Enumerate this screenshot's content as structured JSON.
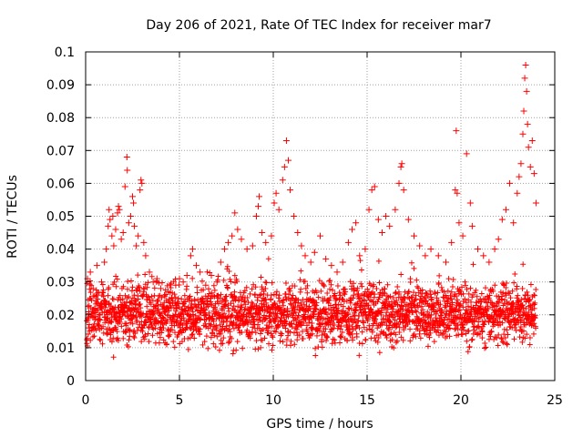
{
  "chart_data": {
    "type": "scatter",
    "title": "Day 206 of 2021, Rate Of TEC Index for receiver mar7",
    "xlabel": "GPS time / hours",
    "ylabel": "ROTI / TECUs",
    "xlim": [
      0,
      25
    ],
    "ylim": [
      0,
      0.1
    ],
    "x_ticks": [
      0,
      5,
      10,
      15,
      20,
      25
    ],
    "x_tick_labels": [
      "0",
      "5",
      "10",
      "15",
      "20",
      "25"
    ],
    "y_ticks": [
      0,
      0.01,
      0.02,
      0.03,
      0.04,
      0.05,
      0.06,
      0.07,
      0.08,
      0.09,
      0.1
    ],
    "y_tick_labels": [
      "0",
      "0.01",
      "0.02",
      "0.03",
      "0.04",
      "0.05",
      "0.06",
      "0.07",
      "0.08",
      "0.09",
      "0.1"
    ],
    "grid": true,
    "marker": "plus",
    "series_color": "#ff0000",
    "series": [
      {
        "name": "ROTI",
        "points": [
          [
            0.1,
            0.031
          ],
          [
            0.25,
            0.033
          ],
          [
            0.4,
            0.028
          ],
          [
            0.6,
            0.035
          ],
          [
            0.85,
            0.03
          ],
          [
            1.0,
            0.036
          ],
          [
            1.1,
            0.04
          ],
          [
            1.2,
            0.047
          ],
          [
            1.25,
            0.052
          ],
          [
            1.3,
            0.049
          ],
          [
            1.4,
            0.044
          ],
          [
            1.45,
            0.05
          ],
          [
            1.5,
            0.041
          ],
          [
            1.6,
            0.046
          ],
          [
            1.7,
            0.051
          ],
          [
            1.75,
            0.053
          ],
          [
            1.8,
            0.052
          ],
          [
            1.9,
            0.043
          ],
          [
            2.0,
            0.045
          ],
          [
            2.1,
            0.059
          ],
          [
            2.2,
            0.068
          ],
          [
            2.22,
            0.064
          ],
          [
            2.3,
            0.048
          ],
          [
            2.4,
            0.05
          ],
          [
            2.5,
            0.056
          ],
          [
            2.55,
            0.054
          ],
          [
            2.6,
            0.047
          ],
          [
            2.7,
            0.041
          ],
          [
            2.8,
            0.044
          ],
          [
            2.9,
            0.058
          ],
          [
            2.95,
            0.061
          ],
          [
            3.0,
            0.06
          ],
          [
            3.1,
            0.042
          ],
          [
            3.2,
            0.038
          ],
          [
            3.4,
            0.033
          ],
          [
            3.6,
            0.03
          ],
          [
            3.8,
            0.031
          ],
          [
            4.0,
            0.028
          ],
          [
            4.2,
            0.026
          ],
          [
            4.4,
            0.027
          ],
          [
            4.6,
            0.025
          ],
          [
            4.8,
            0.029
          ],
          [
            5.0,
            0.031
          ],
          [
            5.2,
            0.03
          ],
          [
            5.4,
            0.032
          ],
          [
            5.6,
            0.038
          ],
          [
            5.7,
            0.04
          ],
          [
            5.9,
            0.035
          ],
          [
            6.1,
            0.033
          ],
          [
            6.4,
            0.029
          ],
          [
            6.7,
            0.032
          ],
          [
            7.0,
            0.03
          ],
          [
            7.2,
            0.036
          ],
          [
            7.4,
            0.04
          ],
          [
            7.6,
            0.042
          ],
          [
            7.8,
            0.044
          ],
          [
            7.95,
            0.051
          ],
          [
            8.1,
            0.046
          ],
          [
            8.3,
            0.043
          ],
          [
            8.6,
            0.04
          ],
          [
            8.9,
            0.041
          ],
          [
            9.1,
            0.05
          ],
          [
            9.2,
            0.053
          ],
          [
            9.25,
            0.056
          ],
          [
            9.4,
            0.045
          ],
          [
            9.6,
            0.042
          ],
          [
            9.9,
            0.044
          ],
          [
            10.05,
            0.054
          ],
          [
            10.15,
            0.057
          ],
          [
            10.3,
            0.052
          ],
          [
            10.5,
            0.061
          ],
          [
            10.6,
            0.065
          ],
          [
            10.7,
            0.073
          ],
          [
            10.8,
            0.067
          ],
          [
            10.9,
            0.058
          ],
          [
            11.1,
            0.05
          ],
          [
            11.3,
            0.045
          ],
          [
            11.5,
            0.041
          ],
          [
            11.7,
            0.038
          ],
          [
            12.0,
            0.036
          ],
          [
            12.2,
            0.039
          ],
          [
            12.5,
            0.044
          ],
          [
            12.8,
            0.037
          ],
          [
            13.1,
            0.035
          ],
          [
            13.4,
            0.033
          ],
          [
            13.7,
            0.036
          ],
          [
            14.0,
            0.042
          ],
          [
            14.2,
            0.046
          ],
          [
            14.4,
            0.048
          ],
          [
            14.6,
            0.038
          ],
          [
            14.9,
            0.04
          ],
          [
            15.1,
            0.052
          ],
          [
            15.25,
            0.058
          ],
          [
            15.4,
            0.059
          ],
          [
            15.6,
            0.049
          ],
          [
            15.8,
            0.045
          ],
          [
            16.0,
            0.05
          ],
          [
            16.2,
            0.047
          ],
          [
            16.5,
            0.052
          ],
          [
            16.7,
            0.06
          ],
          [
            16.8,
            0.065
          ],
          [
            16.85,
            0.066
          ],
          [
            16.95,
            0.058
          ],
          [
            17.2,
            0.049
          ],
          [
            17.5,
            0.044
          ],
          [
            17.8,
            0.041
          ],
          [
            18.1,
            0.038
          ],
          [
            18.4,
            0.04
          ],
          [
            18.8,
            0.038
          ],
          [
            19.2,
            0.036
          ],
          [
            19.5,
            0.042
          ],
          [
            19.7,
            0.058
          ],
          [
            19.75,
            0.076
          ],
          [
            19.8,
            0.057
          ],
          [
            19.9,
            0.048
          ],
          [
            20.1,
            0.044
          ],
          [
            20.3,
            0.069
          ],
          [
            20.5,
            0.054
          ],
          [
            20.6,
            0.047
          ],
          [
            20.9,
            0.04
          ],
          [
            21.2,
            0.038
          ],
          [
            21.5,
            0.036
          ],
          [
            21.8,
            0.04
          ],
          [
            22.0,
            0.043
          ],
          [
            22.2,
            0.049
          ],
          [
            22.4,
            0.052
          ],
          [
            22.6,
            0.06
          ],
          [
            22.8,
            0.048
          ],
          [
            23.0,
            0.057
          ],
          [
            23.1,
            0.062
          ],
          [
            23.2,
            0.066
          ],
          [
            23.3,
            0.075
          ],
          [
            23.35,
            0.082
          ],
          [
            23.4,
            0.092
          ],
          [
            23.45,
            0.096
          ],
          [
            23.5,
            0.088
          ],
          [
            23.55,
            0.078
          ],
          [
            23.6,
            0.071
          ],
          [
            23.7,
            0.065
          ],
          [
            23.8,
            0.073
          ],
          [
            23.9,
            0.063
          ],
          [
            24.0,
            0.054
          ]
        ]
      }
    ]
  }
}
